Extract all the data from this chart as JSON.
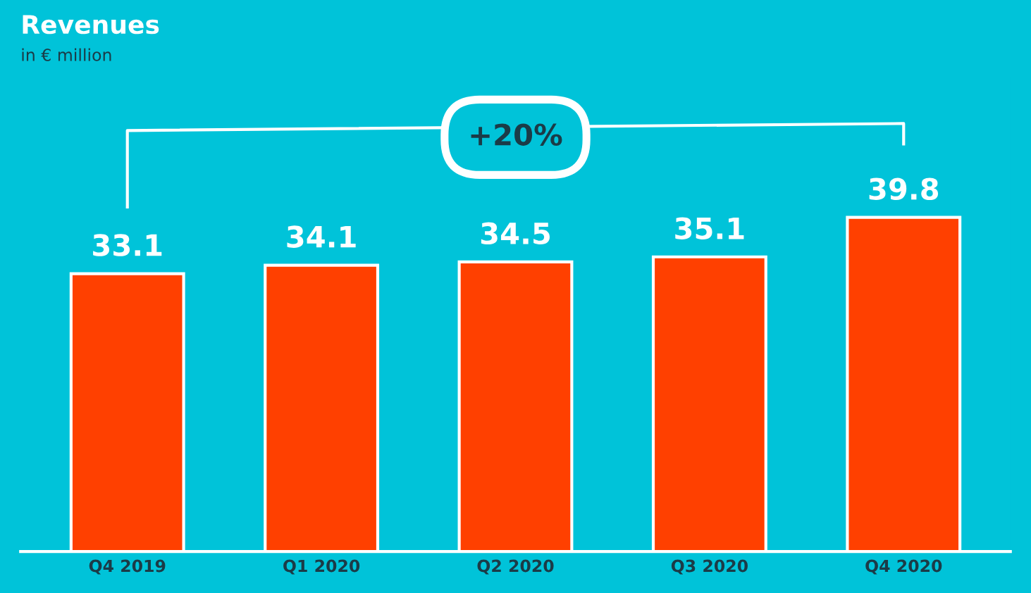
{
  "chart_data": {
    "type": "bar",
    "title": "Revenues",
    "subtitle": "in € million",
    "categories": [
      "Q4 2019",
      "Q1 2020",
      "Q2 2020",
      "Q3 2020",
      "Q4 2020"
    ],
    "values": [
      33.1,
      34.1,
      34.5,
      35.1,
      39.8
    ],
    "color": "#ff4000",
    "data_labels": true,
    "grid": false,
    "annotations": [
      "+20%"
    ]
  }
}
